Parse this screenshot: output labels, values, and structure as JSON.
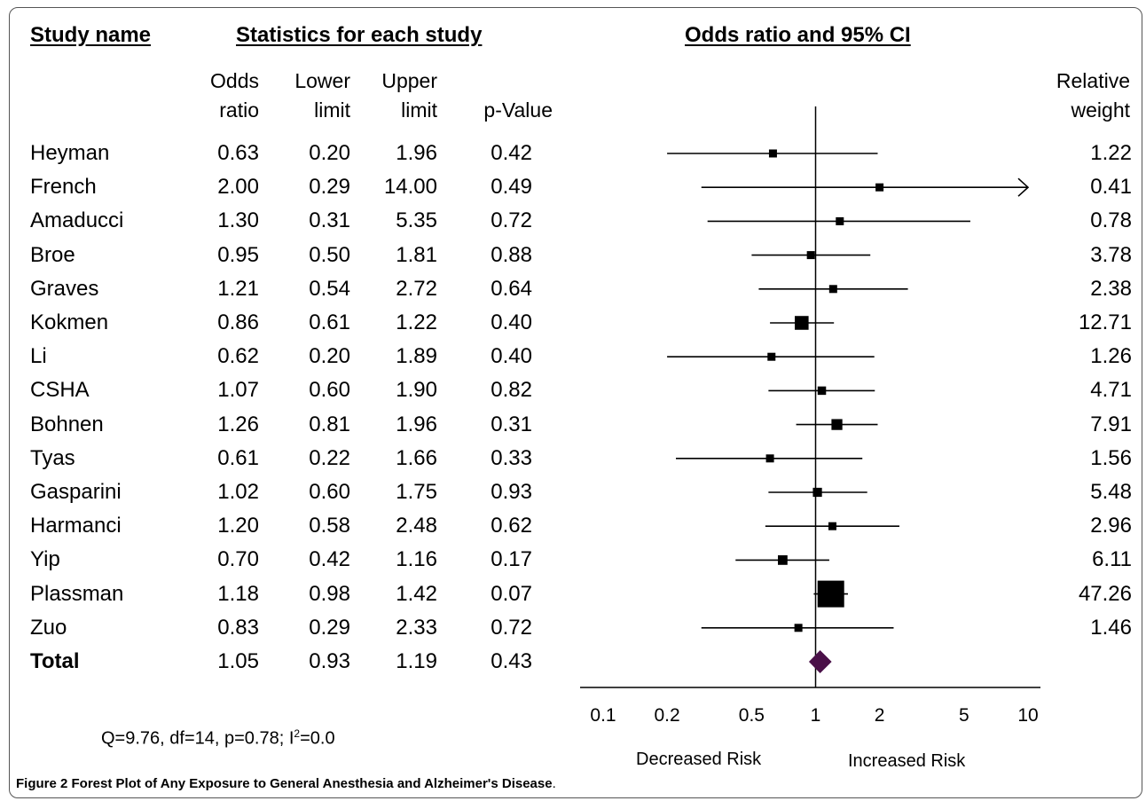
{
  "headers": {
    "study_name": "Study name",
    "statistics": "Statistics for each study",
    "plot": "Odds ratio and 95% CI"
  },
  "columns": {
    "odds_ratio": [
      "Odds",
      "ratio"
    ],
    "lower_limit": [
      "Lower",
      "limit"
    ],
    "upper_limit": [
      "Upper",
      "limit"
    ],
    "p_value": [
      "p-Value"
    ],
    "relative_weight": [
      "Relative",
      "weight"
    ]
  },
  "rows": [
    {
      "study": "Heyman",
      "or": "0.63",
      "lower": "0.20",
      "upper": "1.96",
      "p": "0.42",
      "weight": "1.22"
    },
    {
      "study": "French",
      "or": "2.00",
      "lower": "0.29",
      "upper": "14.00",
      "p": "0.49",
      "weight": "0.41"
    },
    {
      "study": "Amaducci",
      "or": "1.30",
      "lower": "0.31",
      "upper": "5.35",
      "p": "0.72",
      "weight": "0.78"
    },
    {
      "study": "Broe",
      "or": "0.95",
      "lower": "0.50",
      "upper": "1.81",
      "p": "0.88",
      "weight": "3.78"
    },
    {
      "study": "Graves",
      "or": "1.21",
      "lower": "0.54",
      "upper": "2.72",
      "p": "0.64",
      "weight": "2.38"
    },
    {
      "study": "Kokmen",
      "or": "0.86",
      "lower": "0.61",
      "upper": "1.22",
      "p": "0.40",
      "weight": "12.71"
    },
    {
      "study": "Li",
      "or": "0.62",
      "lower": "0.20",
      "upper": "1.89",
      "p": "0.40",
      "weight": "1.26"
    },
    {
      "study": "CSHA",
      "or": "1.07",
      "lower": "0.60",
      "upper": "1.90",
      "p": "0.82",
      "weight": "4.71"
    },
    {
      "study": "Bohnen",
      "or": "1.26",
      "lower": "0.81",
      "upper": "1.96",
      "p": "0.31",
      "weight": "7.91"
    },
    {
      "study": "Tyas",
      "or": "0.61",
      "lower": "0.22",
      "upper": "1.66",
      "p": "0.33",
      "weight": "1.56"
    },
    {
      "study": "Gasparini",
      "or": "1.02",
      "lower": "0.60",
      "upper": "1.75",
      "p": "0.93",
      "weight": "5.48"
    },
    {
      "study": "Harmanci",
      "or": "1.20",
      "lower": "0.58",
      "upper": "2.48",
      "p": "0.62",
      "weight": "2.96"
    },
    {
      "study": "Yip",
      "or": "0.70",
      "lower": "0.42",
      "upper": "1.16",
      "p": "0.17",
      "weight": "6.11"
    },
    {
      "study": "Plassman",
      "or": "1.18",
      "lower": "0.98",
      "upper": "1.42",
      "p": "0.07",
      "weight": "47.26"
    },
    {
      "study": "Zuo",
      "or": "0.83",
      "lower": "0.29",
      "upper": "2.33",
      "p": "0.72",
      "weight": "1.46"
    }
  ],
  "total": {
    "study": "Total",
    "or": "1.05",
    "lower": "0.93",
    "upper": "1.19",
    "p": "0.43"
  },
  "heterogeneity": {
    "text": "Q=9.76, df=14, p=0.78; I",
    "sup": "2",
    "tail": "=0.0"
  },
  "axis_labels": {
    "decreased": "Decreased Risk",
    "increased": "Increased Risk"
  },
  "caption": {
    "bold": "Figure 2 Forest Plot of Any Exposure to General Anesthesia and Alzheimer's Disease",
    "tail": "."
  },
  "chart_data": {
    "type": "scatter",
    "subtype": "forest-plot",
    "title": "Odds ratio and 95% CI",
    "x_scale": "log",
    "xlim": [
      0.1,
      10
    ],
    "x_ticks": [
      0.1,
      0.2,
      0.5,
      1,
      2,
      5,
      10
    ],
    "x_tick_labels": [
      "0.1",
      "0.2",
      "0.5",
      "1",
      "2",
      "5",
      "10"
    ],
    "reference_line": 1,
    "categories": [
      "Heyman",
      "French",
      "Amaducci",
      "Broe",
      "Graves",
      "Kokmen",
      "Li",
      "CSHA",
      "Bohnen",
      "Tyas",
      "Gasparini",
      "Harmanci",
      "Yip",
      "Plassman",
      "Zuo"
    ],
    "odds_ratio": [
      0.63,
      2.0,
      1.3,
      0.95,
      1.21,
      0.86,
      0.62,
      1.07,
      1.26,
      0.61,
      1.02,
      1.2,
      0.7,
      1.18,
      0.83
    ],
    "lower": [
      0.2,
      0.29,
      0.31,
      0.5,
      0.54,
      0.61,
      0.2,
      0.6,
      0.81,
      0.22,
      0.6,
      0.58,
      0.42,
      0.98,
      0.29
    ],
    "upper": [
      1.96,
      14.0,
      5.35,
      1.81,
      2.72,
      1.22,
      1.89,
      1.9,
      1.96,
      1.66,
      1.75,
      2.48,
      1.16,
      1.42,
      2.33
    ],
    "relative_weight": [
      1.22,
      0.41,
      0.78,
      3.78,
      2.38,
      12.71,
      1.26,
      4.71,
      7.91,
      1.56,
      5.48,
      2.96,
      6.11,
      47.26,
      1.46
    ],
    "pooled": {
      "odds_ratio": 1.05,
      "lower": 0.93,
      "upper": 1.19
    },
    "pooled_color": "#4a1048",
    "grid": false
  }
}
